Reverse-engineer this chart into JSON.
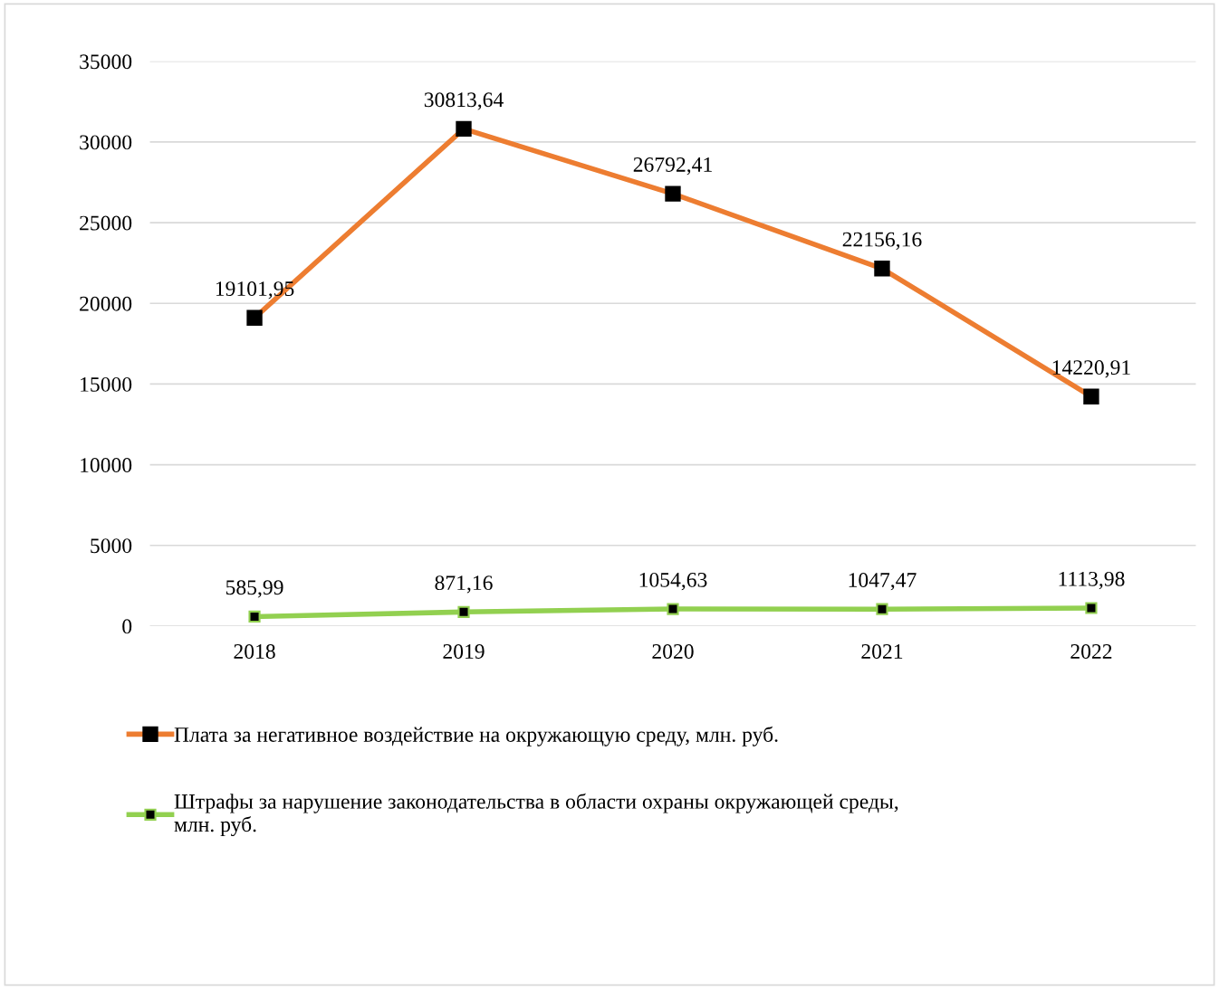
{
  "chart_data": {
    "type": "line",
    "categories": [
      "2018",
      "2019",
      "2020",
      "2021",
      "2022"
    ],
    "series": [
      {
        "name": "Плата за негативное воздействие на окружающую среду, млн. руб.",
        "color": "#ed7d31",
        "values": [
          19101.95,
          30813.64,
          26792.41,
          22156.16,
          14220.91
        ],
        "value_labels": [
          "19101,95",
          "30813,64",
          "26792,41",
          "22156,16",
          "14220,91"
        ]
      },
      {
        "name": "Штрафы за нарушение законодательства в области охраны окружающей среды,\nмлн. руб.",
        "color": "#92d050",
        "values": [
          585.99,
          871.16,
          1054.63,
          1047.47,
          1113.98
        ],
        "value_labels": [
          "585,99",
          "871,16",
          "1054,63",
          "1047,47",
          "1113,98"
        ]
      }
    ],
    "ylim": [
      0,
      35000
    ],
    "yticks": [
      0,
      5000,
      10000,
      15000,
      20000,
      25000,
      30000,
      35000
    ],
    "grid": "y",
    "legend": "bottom",
    "marker": "square",
    "line_style": "solid"
  }
}
